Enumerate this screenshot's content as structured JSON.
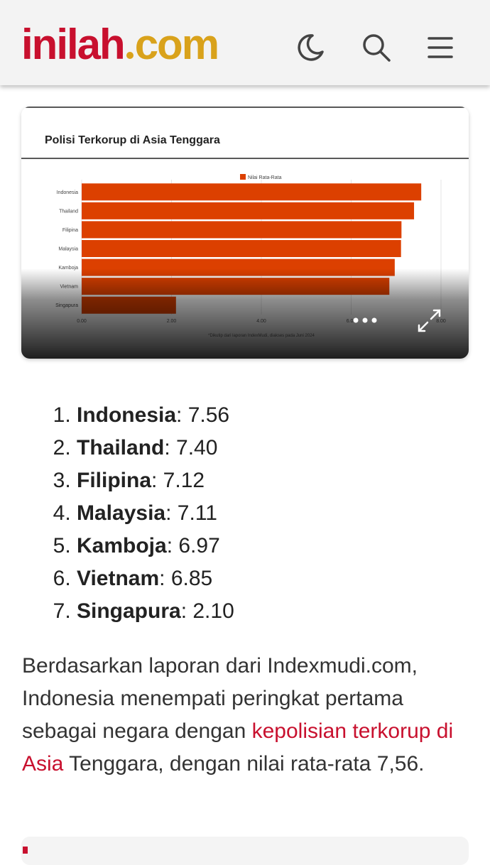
{
  "header": {
    "logo": {
      "main": "inilah",
      "suffix": "com"
    }
  },
  "chart_data": {
    "type": "hbar",
    "title": "Polisi Terkorup di Asia Tenggara",
    "categories": [
      "Indonesia",
      "Thailand",
      "Filipina",
      "Malaysia",
      "Kamboja",
      "Vietnam",
      "Singapura"
    ],
    "series": [
      {
        "name": "Nilai Rata-Rata",
        "color": "#dc4000",
        "values": [
          7.56,
          7.4,
          7.12,
          7.11,
          6.97,
          6.85,
          2.1
        ]
      }
    ],
    "xlim": [
      0,
      8
    ],
    "xticks": [
      {
        "value": 0,
        "label": "0.00"
      },
      {
        "value": 2,
        "label": "2.00"
      },
      {
        "value": 4,
        "label": "4.00"
      },
      {
        "value": 6,
        "label": "6.00"
      },
      {
        "value": 8,
        "label": "8.00"
      }
    ],
    "grid": true,
    "legend": "top",
    "note": "*Dikutip dari laporan IndexMudi, diakses pada Juni 2024"
  },
  "list": [
    {
      "name": "Indonesia",
      "value": ": 7.56"
    },
    {
      "name": "Thailand",
      "value": ": 7.40"
    },
    {
      "name": "Filipina",
      "value": ": 7.12"
    },
    {
      "name": "Malaysia",
      "value": ": 7.11"
    },
    {
      "name": "Kamboja",
      "value": ": 6.97"
    },
    {
      "name": "Vietnam",
      "value": ": 6.85"
    },
    {
      "name": "Singapura",
      "value": ": 2.10"
    }
  ],
  "paragraph": {
    "before": "Berdasarkan laporan dari Indexmudi.com, Indonesia menempati peringkat pertama sebagai negara dengan ",
    "link": "kepolisian terkorup di Asia",
    "after": " Tenggara, dengan nilai rata-rata 7,56."
  }
}
